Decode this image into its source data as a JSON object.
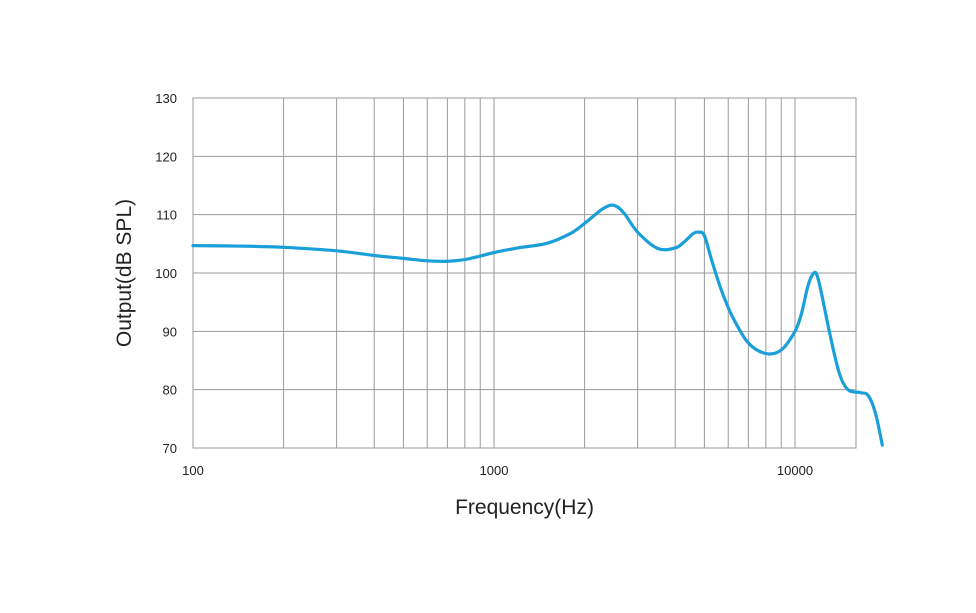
{
  "chart_data": {
    "type": "line",
    "title": "",
    "xlabel": "Frequency(Hz)",
    "ylabel": "Output(dB SPL)",
    "x_scale": "log",
    "xlim": [
      100,
      20000
    ],
    "ylim": [
      70,
      130
    ],
    "x_tick_labels": [
      "100",
      "1000",
      "10000"
    ],
    "x_ticks": [
      100,
      1000,
      10000
    ],
    "y_ticks": [
      70,
      80,
      90,
      100,
      110,
      120,
      130
    ],
    "grid": true,
    "line_color": "#1a9fd9",
    "series": [
      {
        "x": [
          100,
          150,
          200,
          300,
          400,
          500,
          600,
          700,
          800,
          900,
          1000,
          1200,
          1500,
          1800,
          2000,
          2300,
          2500,
          2700,
          3000,
          3500,
          4000,
          4300,
          4600,
          4800,
          5000,
          5300,
          5700,
          6200,
          7000,
          8000,
          9000,
          10000,
          10500,
          11000,
          11400,
          11800,
          12300,
          13000,
          14000,
          15000,
          16500,
          17500,
          18500,
          19500
        ],
        "y": [
          104.7,
          104.6,
          104.4,
          103.8,
          103.0,
          102.5,
          102.1,
          102.0,
          102.3,
          102.9,
          103.5,
          104.3,
          105.1,
          106.8,
          108.5,
          111.0,
          111.6,
          110.3,
          107.0,
          104.2,
          104.3,
          105.4,
          106.8,
          107.0,
          106.4,
          102.0,
          97.0,
          92.5,
          88.0,
          86.2,
          86.8,
          90.0,
          93.0,
          97.5,
          99.6,
          99.8,
          96.0,
          90.0,
          83.0,
          80.0,
          79.5,
          79.0,
          76.0,
          70.5
        ]
      }
    ]
  }
}
